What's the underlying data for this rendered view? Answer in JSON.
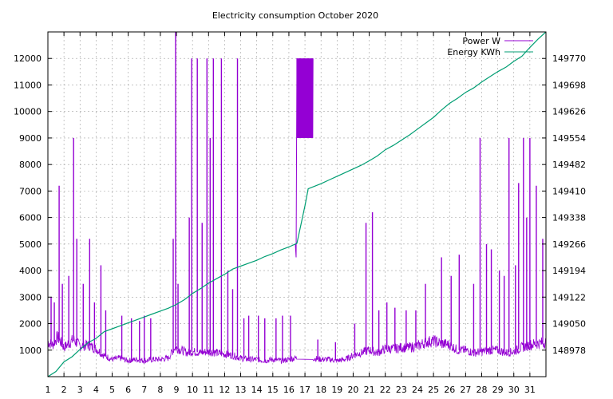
{
  "chart_data": {
    "type": "line",
    "title": "Electricity consumption October 2020",
    "x_ticks": [
      "1",
      "2",
      "3",
      "4",
      "5",
      "6",
      "7",
      "8",
      "9",
      "10",
      "11",
      "12",
      "13",
      "14",
      "15",
      "16",
      "17",
      "18",
      "19",
      "20",
      "21",
      "22",
      "23",
      "24",
      "25",
      "26",
      "27",
      "28",
      "29",
      "30",
      "31"
    ],
    "xlim": [
      1,
      32
    ],
    "y_left": {
      "ylim": [
        0,
        13000
      ],
      "ticks": [
        1000,
        2000,
        3000,
        4000,
        5000,
        6000,
        7000,
        8000,
        9000,
        10000,
        11000,
        12000
      ],
      "tick_labels": [
        "1000",
        "2000",
        "3000",
        "4000",
        "5000",
        "6000",
        "7000",
        "8000",
        "9000",
        "10000",
        "11000",
        "12000"
      ]
    },
    "y_right": {
      "ylim": [
        148906,
        149842
      ],
      "ticks": [
        148978,
        149050,
        149122,
        149194,
        149266,
        149338,
        149410,
        149482,
        149554,
        149626,
        149698,
        149770
      ],
      "tick_labels": [
        "148978",
        "149050",
        "149122",
        "149194",
        "149266",
        "149338",
        "149410",
        "149482",
        "149554",
        "149626",
        "149698",
        "149770"
      ]
    },
    "grid": true,
    "legend_position": "top-right",
    "colors": {
      "power": "#9400d3",
      "energy": "#009e73"
    },
    "series": [
      {
        "name": "Power W",
        "axis": "left",
        "baseline_points": [
          [
            1.0,
            1300
          ],
          [
            1.3,
            1200
          ],
          [
            1.6,
            1500
          ],
          [
            2.0,
            1100
          ],
          [
            2.3,
            1250
          ],
          [
            2.6,
            1400
          ],
          [
            3.0,
            1150
          ],
          [
            3.5,
            1200
          ],
          [
            4.0,
            1050
          ],
          [
            4.5,
            800
          ],
          [
            5.0,
            650
          ],
          [
            5.5,
            700
          ],
          [
            6.0,
            600
          ],
          [
            6.5,
            650
          ],
          [
            7.0,
            600
          ],
          [
            7.5,
            650
          ],
          [
            8.0,
            650
          ],
          [
            8.5,
            700
          ],
          [
            8.9,
            1100
          ],
          [
            9.3,
            1000
          ],
          [
            9.7,
            900
          ],
          [
            10.0,
            950
          ],
          [
            10.5,
            900
          ],
          [
            11.0,
            950
          ],
          [
            11.5,
            900
          ],
          [
            12.0,
            850
          ],
          [
            12.5,
            800
          ],
          [
            13.0,
            700
          ],
          [
            13.5,
            650
          ],
          [
            14.0,
            650
          ],
          [
            14.5,
            600
          ],
          [
            15.0,
            650
          ],
          [
            15.5,
            600
          ],
          [
            16.0,
            650
          ],
          [
            16.4,
            700
          ],
          [
            17.5,
            700
          ],
          [
            18.0,
            650
          ],
          [
            18.5,
            650
          ],
          [
            19.0,
            600
          ],
          [
            19.5,
            650
          ],
          [
            20.0,
            800
          ],
          [
            20.5,
            900
          ],
          [
            21.0,
            1000
          ],
          [
            21.5,
            900
          ],
          [
            22.0,
            1050
          ],
          [
            22.5,
            1050
          ],
          [
            23.0,
            1100
          ],
          [
            23.5,
            1100
          ],
          [
            24.0,
            1150
          ],
          [
            24.5,
            1300
          ],
          [
            25.0,
            1350
          ],
          [
            25.5,
            1250
          ],
          [
            26.0,
            1200
          ],
          [
            26.5,
            1000
          ],
          [
            27.0,
            1000
          ],
          [
            27.5,
            900
          ],
          [
            28.0,
            950
          ],
          [
            28.5,
            1000
          ],
          [
            29.0,
            1000
          ],
          [
            29.5,
            900
          ],
          [
            30.0,
            950
          ],
          [
            30.5,
            1100
          ],
          [
            31.0,
            1200
          ],
          [
            31.5,
            1250
          ],
          [
            32.0,
            1300
          ]
        ],
        "spikes": [
          [
            1.2,
            3000
          ],
          [
            1.4,
            2800
          ],
          [
            1.7,
            7200
          ],
          [
            1.9,
            3500
          ],
          [
            2.3,
            3800
          ],
          [
            2.6,
            9000
          ],
          [
            2.8,
            5200
          ],
          [
            3.2,
            3500
          ],
          [
            3.6,
            5200
          ],
          [
            3.9,
            2800
          ],
          [
            4.3,
            4200
          ],
          [
            4.6,
            2500
          ],
          [
            5.6,
            2300
          ],
          [
            6.2,
            2200
          ],
          [
            6.7,
            2100
          ],
          [
            7.0,
            2300
          ],
          [
            7.4,
            2200
          ],
          [
            8.8,
            5200
          ],
          [
            8.95,
            13000
          ],
          [
            9.1,
            3500
          ],
          [
            9.8,
            6000
          ],
          [
            9.95,
            12000
          ],
          [
            10.3,
            12000
          ],
          [
            10.6,
            5800
          ],
          [
            10.9,
            12000
          ],
          [
            11.1,
            9000
          ],
          [
            11.3,
            12000
          ],
          [
            11.8,
            12000
          ],
          [
            12.2,
            4000
          ],
          [
            12.5,
            3300
          ],
          [
            12.8,
            12000
          ],
          [
            13.2,
            2200
          ],
          [
            13.5,
            2300
          ],
          [
            14.1,
            2300
          ],
          [
            14.5,
            2200
          ],
          [
            15.2,
            2200
          ],
          [
            15.6,
            2300
          ],
          [
            16.1,
            2300
          ],
          [
            17.8,
            1400
          ],
          [
            18.9,
            1300
          ],
          [
            20.1,
            2000
          ],
          [
            20.8,
            5800
          ],
          [
            21.2,
            6200
          ],
          [
            21.6,
            2500
          ],
          [
            22.1,
            2800
          ],
          [
            22.6,
            2600
          ],
          [
            23.3,
            2500
          ],
          [
            23.9,
            2500
          ],
          [
            24.5,
            3500
          ],
          [
            25.5,
            4500
          ],
          [
            26.1,
            3800
          ],
          [
            26.6,
            4600
          ],
          [
            27.5,
            3500
          ],
          [
            27.9,
            9000
          ],
          [
            28.3,
            5000
          ],
          [
            28.6,
            4800
          ],
          [
            29.1,
            4000
          ],
          [
            29.4,
            3800
          ],
          [
            29.7,
            9000
          ],
          [
            30.1,
            4200
          ],
          [
            30.3,
            7300
          ],
          [
            30.6,
            9000
          ],
          [
            30.8,
            6000
          ],
          [
            31.0,
            9000
          ],
          [
            31.4,
            7200
          ],
          [
            31.8,
            5200
          ]
        ],
        "saturated_band": {
          "x_start": 16.5,
          "x_end": 17.5,
          "y_low": 9000,
          "y_high": 12000
        },
        "step_at_16_5": [
          [
            16.4,
            5000
          ],
          [
            16.45,
            4500
          ],
          [
            16.5,
            12000
          ]
        ]
      },
      {
        "name": "Energy KWh",
        "axis": "right",
        "points": [
          [
            1.0,
            148906
          ],
          [
            1.5,
            148920
          ],
          [
            2.0,
            148946
          ],
          [
            2.5,
            148960
          ],
          [
            3.0,
            148980
          ],
          [
            3.5,
            148998
          ],
          [
            4.0,
            149010
          ],
          [
            4.5,
            149028
          ],
          [
            5.0,
            149036
          ],
          [
            5.5,
            149044
          ],
          [
            6.0,
            149052
          ],
          [
            6.5,
            149060
          ],
          [
            7.0,
            149068
          ],
          [
            7.5,
            149076
          ],
          [
            8.0,
            149084
          ],
          [
            8.5,
            149092
          ],
          [
            9.0,
            149102
          ],
          [
            9.5,
            149115
          ],
          [
            10.0,
            149132
          ],
          [
            10.5,
            149145
          ],
          [
            11.0,
            149160
          ],
          [
            11.5,
            149172
          ],
          [
            12.0,
            149184
          ],
          [
            12.5,
            149198
          ],
          [
            13.0,
            149206
          ],
          [
            13.5,
            149214
          ],
          [
            14.0,
            149222
          ],
          [
            14.5,
            149232
          ],
          [
            15.0,
            149240
          ],
          [
            15.5,
            149250
          ],
          [
            16.0,
            149258
          ],
          [
            16.5,
            149268
          ],
          [
            17.0,
            149370
          ],
          [
            17.2,
            149416
          ],
          [
            18.0,
            149430
          ],
          [
            18.5,
            149440
          ],
          [
            19.0,
            149450
          ],
          [
            19.5,
            149460
          ],
          [
            20.0,
            149470
          ],
          [
            20.5,
            149480
          ],
          [
            21.0,
            149492
          ],
          [
            21.5,
            149505
          ],
          [
            22.0,
            149522
          ],
          [
            22.5,
            149534
          ],
          [
            23.0,
            149548
          ],
          [
            23.5,
            149562
          ],
          [
            24.0,
            149578
          ],
          [
            24.5,
            149594
          ],
          [
            25.0,
            149610
          ],
          [
            25.5,
            149630
          ],
          [
            26.0,
            149648
          ],
          [
            26.5,
            149662
          ],
          [
            27.0,
            149678
          ],
          [
            27.5,
            149690
          ],
          [
            28.0,
            149706
          ],
          [
            28.5,
            149720
          ],
          [
            29.0,
            149734
          ],
          [
            29.5,
            149746
          ],
          [
            30.0,
            149762
          ],
          [
            30.5,
            149776
          ],
          [
            31.0,
            149800
          ],
          [
            31.5,
            149822
          ],
          [
            32.0,
            149842
          ]
        ]
      }
    ]
  }
}
